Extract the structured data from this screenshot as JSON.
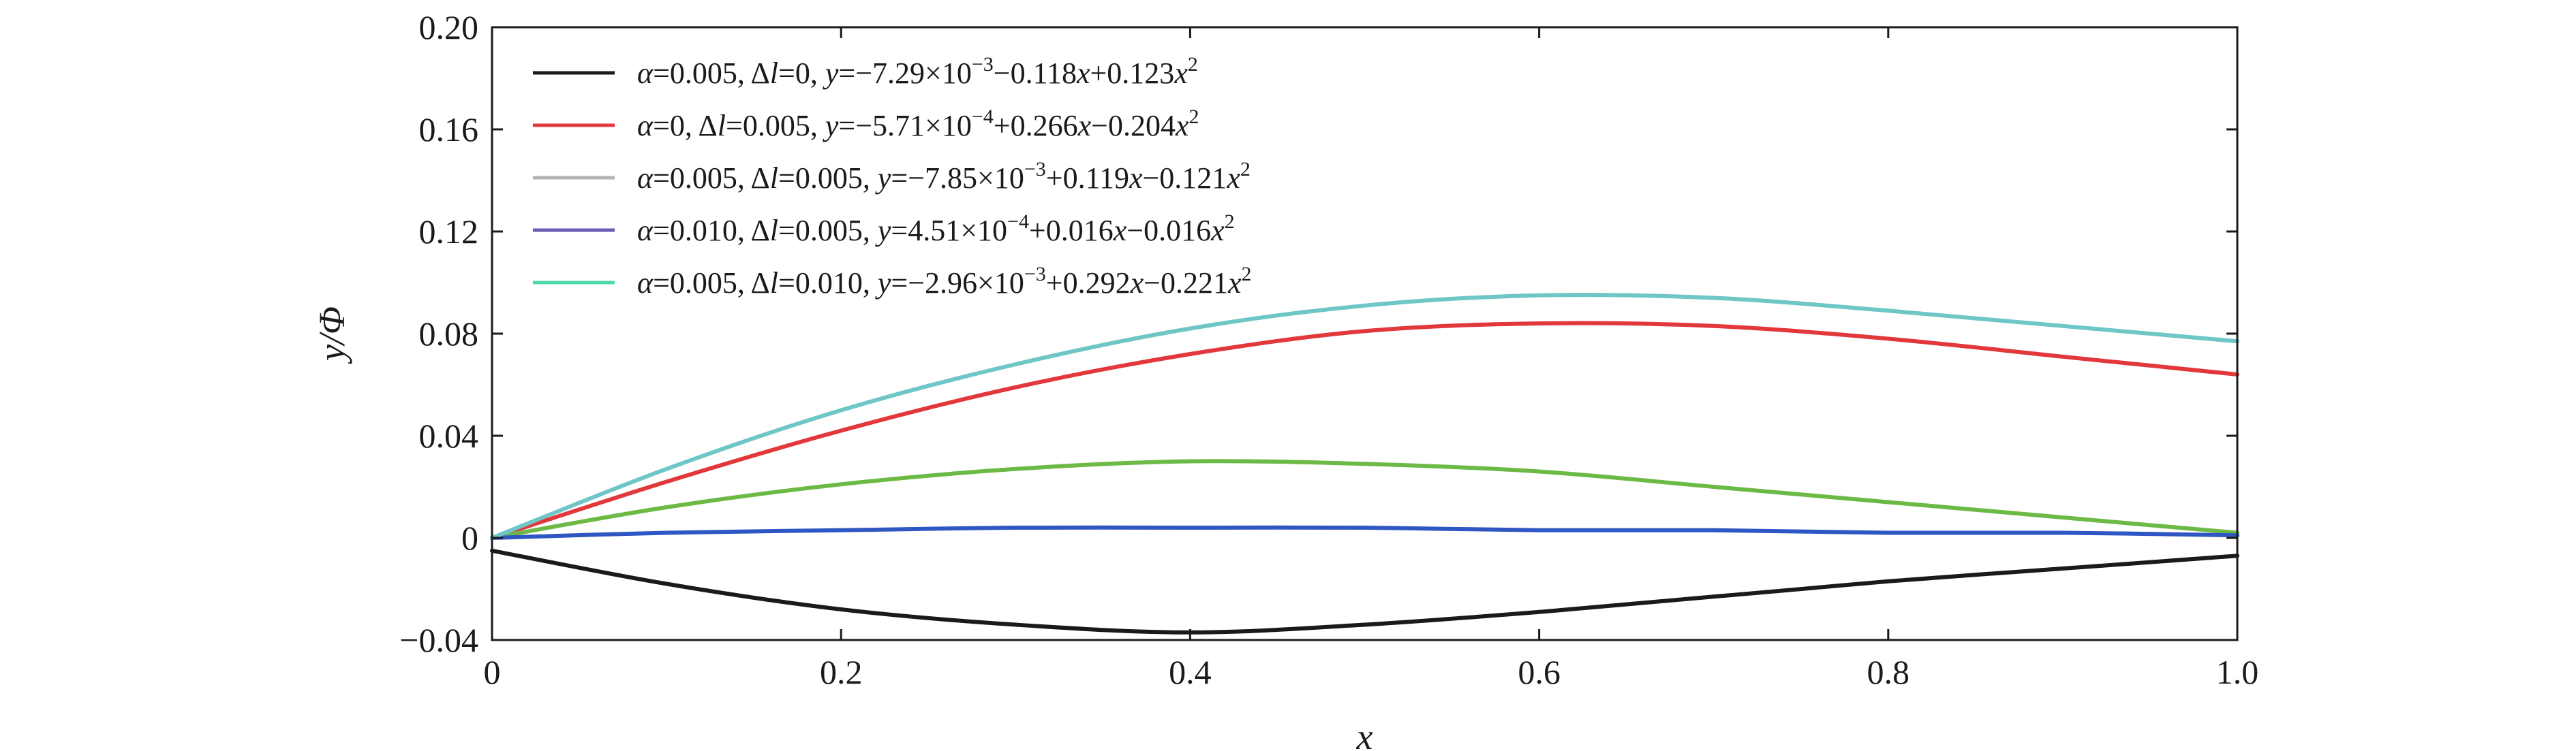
{
  "chart_data": {
    "type": "line",
    "title": "",
    "xlabel": "x",
    "ylabel": "y/Φ",
    "xlim": [
      0,
      1.0
    ],
    "ylim": [
      -0.04,
      0.2
    ],
    "xticks": [
      "0",
      "0.2",
      "0.4",
      "0.6",
      "0.8",
      "1.0"
    ],
    "xtick_values": [
      0,
      0.2,
      0.4,
      0.6,
      0.8,
      1.0
    ],
    "yticks": [
      "0.20",
      "0.16",
      "0.12",
      "0.08",
      "0.04",
      "0",
      "−0.04"
    ],
    "ytick_values": [
      0.2,
      0.16,
      0.12,
      0.08,
      0.04,
      0,
      -0.04
    ],
    "grid": false,
    "legend_position": "top-left",
    "x": [
      0,
      0.1,
      0.2,
      0.3,
      0.4,
      0.5,
      0.6,
      0.7,
      0.8,
      0.9,
      1.0
    ],
    "series": [
      {
        "name": "α=0.005, Δl=0, y=−7.29×10⁻³−0.118x+0.123x²",
        "legend": {
          "a": "0.005",
          "dl": "0",
          "c0": "−7.29×10",
          "exp": "−3",
          "c1": "−0.118",
          "c2": "+0.123"
        },
        "color": "#1a1a1a",
        "values": [
          -0.005,
          -0.018,
          -0.028,
          -0.034,
          -0.037,
          -0.034,
          -0.029,
          -0.023,
          -0.017,
          -0.012,
          -0.007
        ]
      },
      {
        "name": "α=0, Δl=0.005, y=−5.71×10⁻⁴+0.266x−0.204x²",
        "legend": {
          "a": "0",
          "dl": "0.005",
          "c0": "−5.71×10",
          "exp": "−4",
          "c1": "+0.266",
          "c2": "−0.204"
        },
        "color": "#e2383c",
        "values": [
          0,
          0.022,
          0.042,
          0.059,
          0.072,
          0.081,
          0.084,
          0.083,
          0.078,
          0.071,
          0.064
        ]
      },
      {
        "name": "α=0.005, Δl=0.005, y=−7.85×10⁻³+0.119x−0.121x²",
        "legend": {
          "a": "0.005",
          "dl": "0.005",
          "c0": "−7.85×10",
          "exp": "−3",
          "c1": "+0.119",
          "c2": "−0.121"
        },
        "color": "#6cba45",
        "values": [
          0,
          0.012,
          0.021,
          0.027,
          0.03,
          0.029,
          0.026,
          0.02,
          0.014,
          0.008,
          0.002
        ]
      },
      {
        "name": "α=0.010, Δl=0.005, y=4.51×10⁻⁴+0.016x−0.016x²",
        "legend": {
          "a": "0.010",
          "dl": "0.005",
          "c0": "4.51×10",
          "exp": "−4",
          "c1": "+0.016",
          "c2": "−0.016"
        },
        "color": "#2f57c3",
        "values": [
          0,
          0.002,
          0.003,
          0.004,
          0.004,
          0.004,
          0.003,
          0.003,
          0.002,
          0.002,
          0.001
        ]
      },
      {
        "name": "α=0.005, Δl=0.010, y=−2.96×10⁻³+0.292x−0.221x²",
        "legend": {
          "a": "0.005",
          "dl": "0.010",
          "c0": "−2.96×10",
          "exp": "−3",
          "c1": "+0.292",
          "c2": "−0.221"
        },
        "color": "#6ec6c6",
        "values": [
          0,
          0.027,
          0.05,
          0.068,
          0.082,
          0.091,
          0.095,
          0.094,
          0.089,
          0.083,
          0.077
        ]
      }
    ],
    "legend_swatch_colors": [
      "#1a1a1a",
      "#e2383c",
      "#b4b4b4",
      "#6a5bb3",
      "#4ed9a6"
    ]
  }
}
